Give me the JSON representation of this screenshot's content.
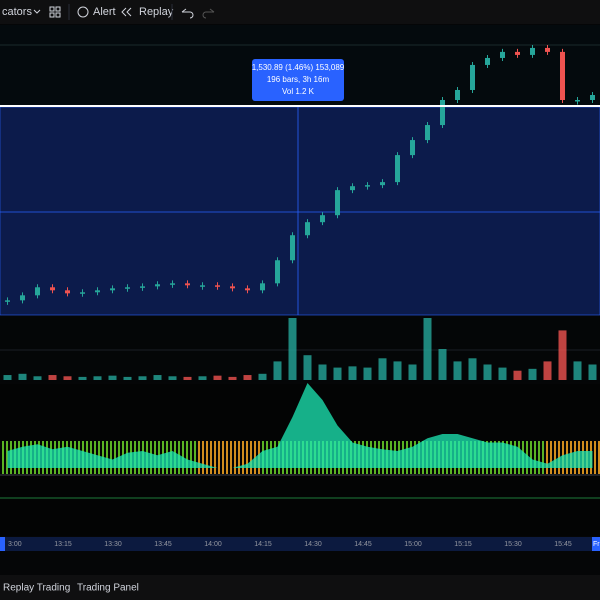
{
  "toolbar": {
    "indicators": "cators",
    "alert": "Alert",
    "replay": "Replay"
  },
  "tooltip": {
    "line1": "1,530.89 (1.46%) 153,089",
    "line2": "196 bars, 3h 16m",
    "line3": "Vol 1.2 K"
  },
  "chart": {
    "type": "candlestick",
    "ylim": [
      104600,
      107090
    ],
    "price": [
      104726,
      104769,
      104838,
      104812,
      104786,
      104795,
      104812,
      104829,
      104838,
      104846,
      104864,
      104872,
      104855,
      104855,
      104846,
      104829,
      104812,
      104872,
      105070,
      105285,
      105397,
      105457,
      105672,
      105706,
      105715,
      105741,
      105973,
      106102,
      106231,
      106446,
      106532,
      106747,
      106807,
      106859,
      106833,
      106893,
      106859,
      106446,
      106446,
      106489
    ],
    "volume": [
      8,
      10,
      6,
      8,
      6,
      5,
      6,
      7,
      5,
      6,
      8,
      6,
      5,
      6,
      7,
      5,
      8,
      10,
      30,
      100,
      40,
      25,
      20,
      22,
      20,
      35,
      30,
      25,
      100,
      50,
      30,
      35,
      25,
      20,
      15,
      18,
      30,
      80,
      30,
      25
    ],
    "volume_lim": [
      0,
      100
    ],
    "oscillator": [
      20,
      25,
      28,
      22,
      25,
      20,
      15,
      10,
      18,
      20,
      15,
      20,
      10,
      5,
      0,
      0,
      5,
      20,
      25,
      60,
      100,
      80,
      50,
      30,
      25,
      22,
      20,
      25,
      35,
      40,
      40,
      35,
      30,
      30,
      25,
      10,
      5,
      15,
      20,
      20
    ],
    "oscillator_lim": [
      0,
      100
    ],
    "up_color": "#26a69a",
    "down_color": "#ef5350"
  },
  "time_axis": {
    "start": "3:00",
    "labels": [
      "13:15",
      "13:30",
      "13:45",
      "14:00",
      "14:15",
      "14:30",
      "14:45",
      "15:00",
      "15:15",
      "15:30",
      "15:45"
    ],
    "end_marker": "Fr"
  },
  "bottom_bar": {
    "tabs": [
      "Replay Trading",
      "Trading Panel"
    ]
  }
}
